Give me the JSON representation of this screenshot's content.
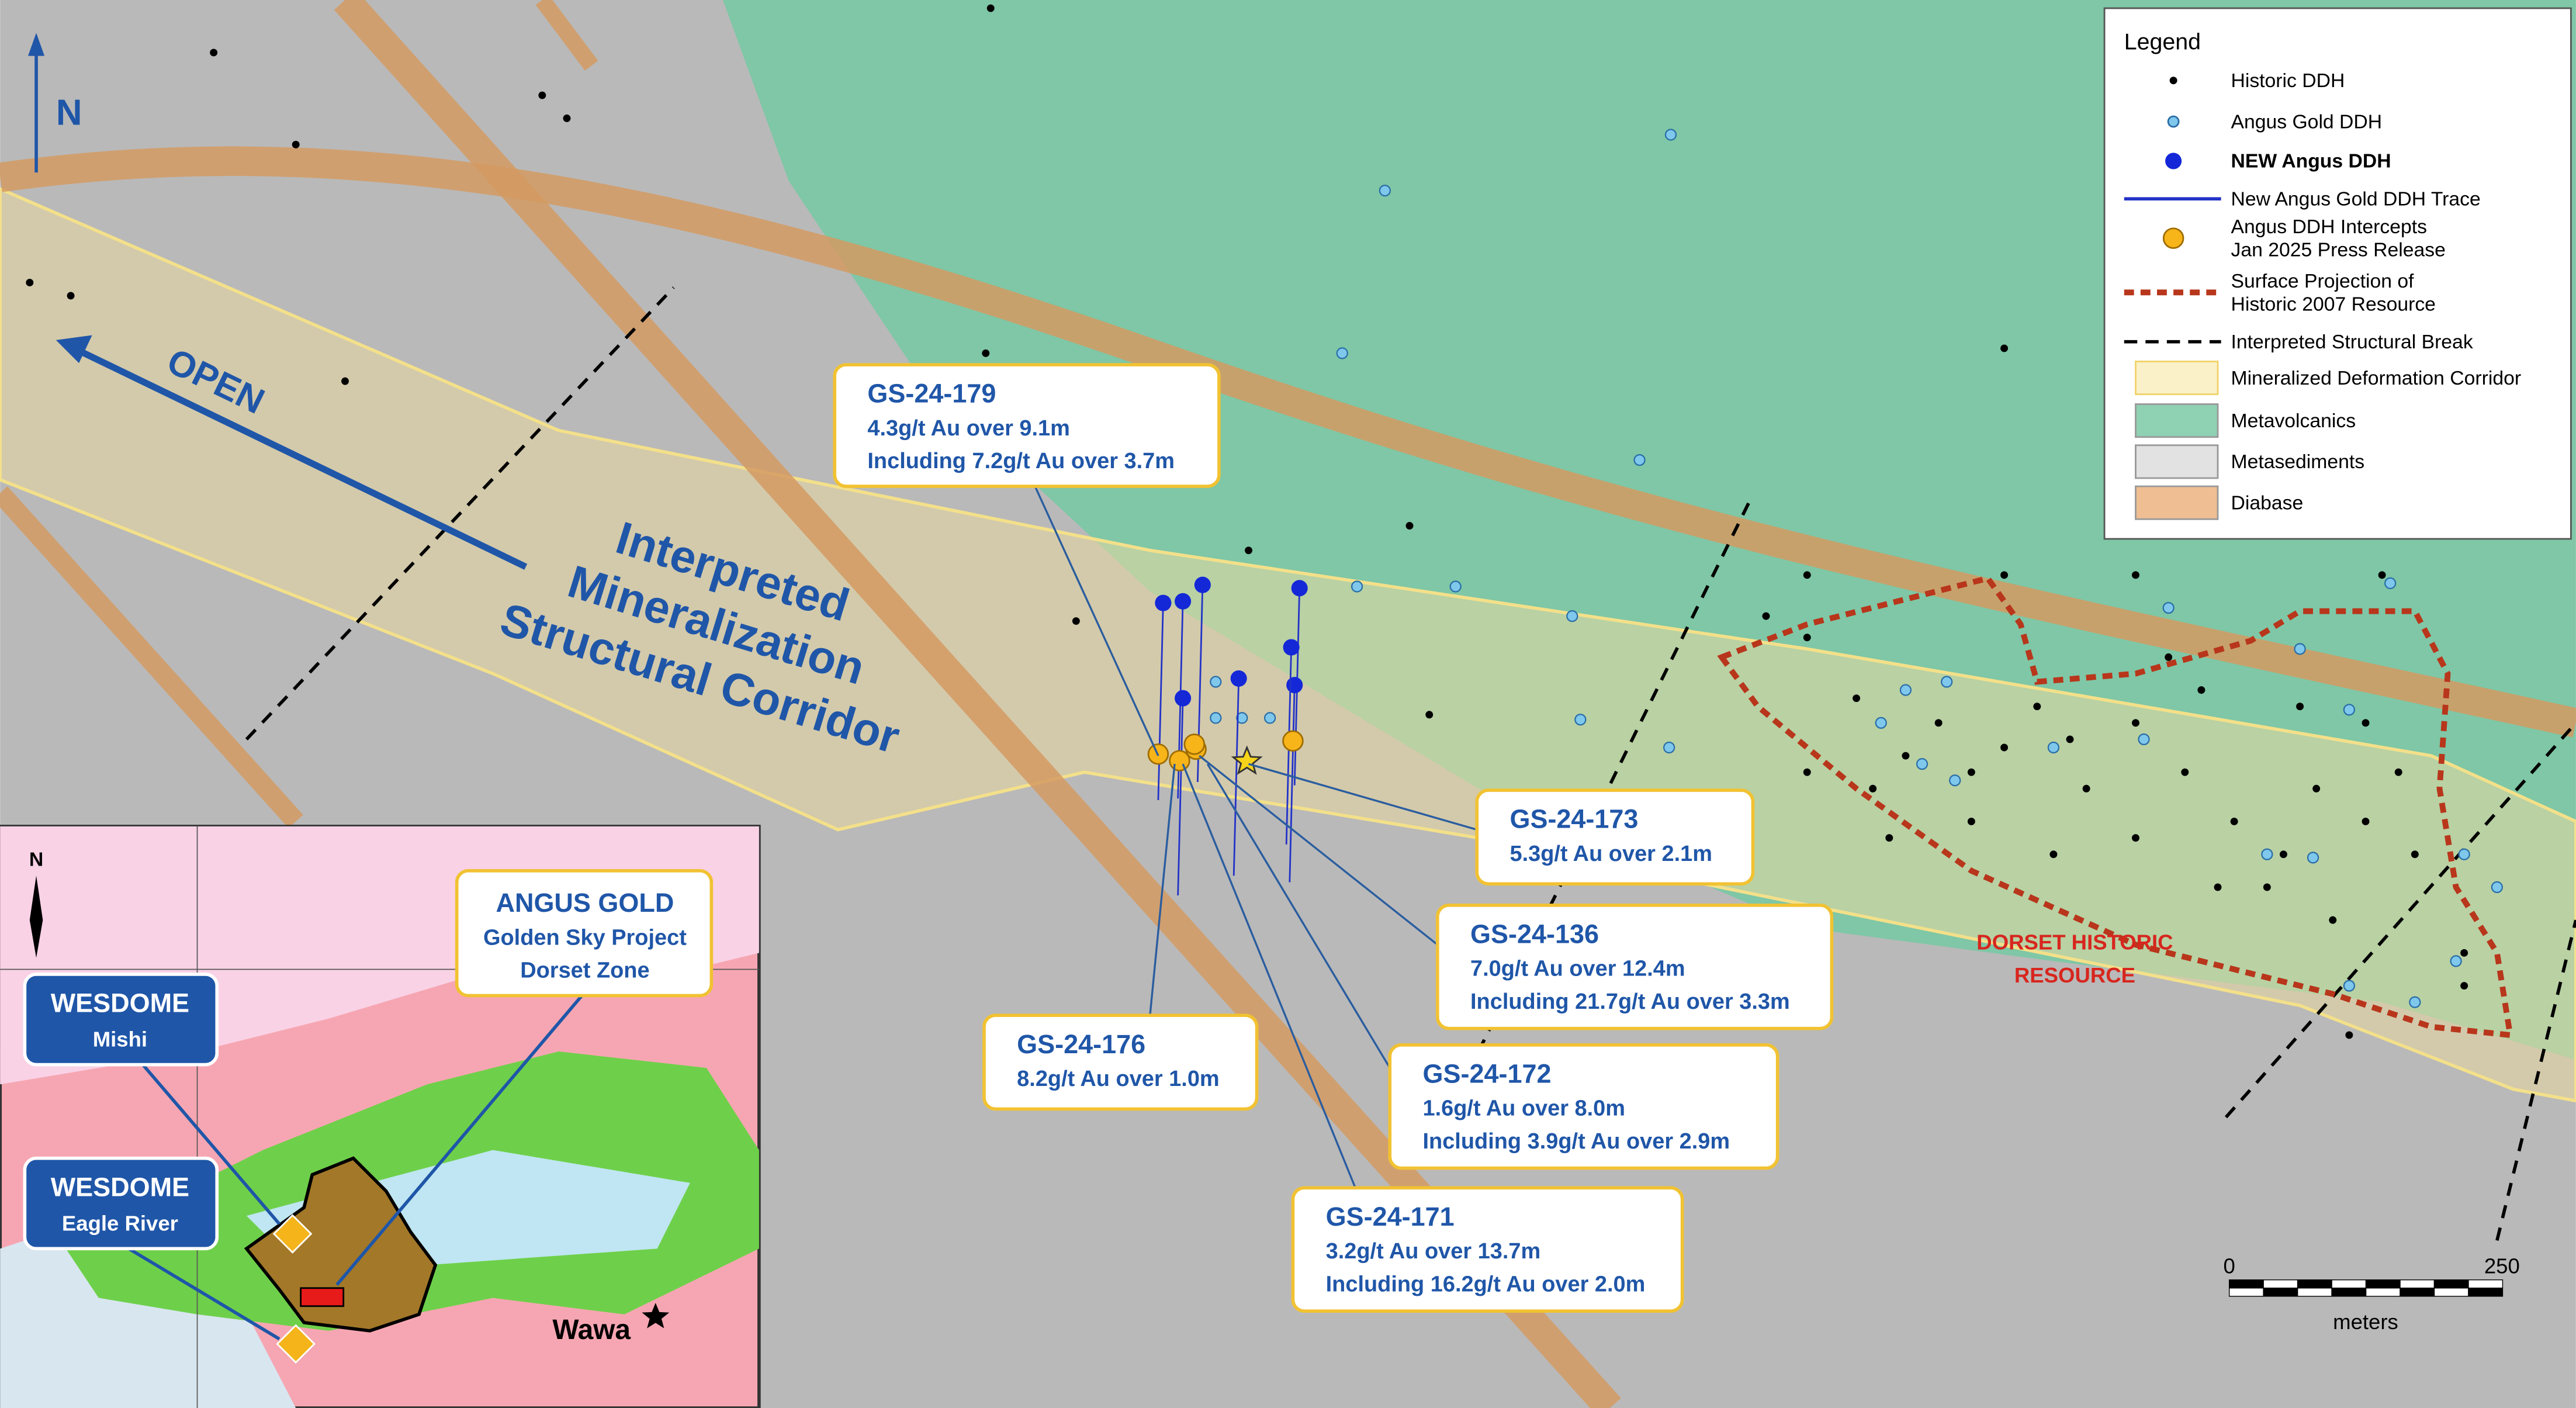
{
  "north": "N",
  "map_labels": {
    "open": "OPEN",
    "corridor": [
      "Interpreted",
      "Mineralization",
      "Structural Corridor"
    ],
    "resource": [
      "DORSET HISTORIC",
      "RESOURCE"
    ]
  },
  "legend": {
    "title": "Legend",
    "items": [
      [
        "Historic DDH"
      ],
      [
        "Angus Gold DDH"
      ],
      [
        "NEW Angus DDH"
      ],
      [
        "New Angus Gold DDH Trace"
      ],
      [
        "Angus DDH Intercepts",
        "Jan 2025 Press Release"
      ],
      [
        "Surface Projection of",
        "Historic 2007 Resource"
      ],
      [
        "Interpreted Structural Break"
      ],
      [
        "Mineralized Deformation Corridor"
      ],
      [
        "Metavolcanics"
      ],
      [
        "Metasediments"
      ],
      [
        "Diabase"
      ]
    ]
  },
  "callouts": [
    {
      "hole": "GS-24-179",
      "lines": [
        "4.3g/t Au over 9.1m",
        "Including 7.2g/t Au over 3.7m"
      ]
    },
    {
      "hole": "GS-24-173",
      "lines": [
        "5.3g/t Au over 2.1m"
      ]
    },
    {
      "hole": "GS-24-136",
      "lines": [
        "7.0g/t Au over 12.4m",
        "Including 21.7g/t Au over 3.3m"
      ]
    },
    {
      "hole": "GS-24-176",
      "lines": [
        "8.2g/t Au over 1.0m"
      ]
    },
    {
      "hole": "GS-24-172",
      "lines": [
        "1.6g/t Au over 8.0m",
        "Including 3.9g/t Au over 2.9m"
      ]
    },
    {
      "hole": "GS-24-171",
      "lines": [
        "3.2g/t Au over 13.7m",
        "Including 16.2g/t Au over 2.0m"
      ]
    }
  ],
  "scale": {
    "start": "0",
    "end": "250",
    "unit": "meters"
  },
  "inset": {
    "north": "N",
    "angus": [
      "ANGUS GOLD",
      "Golden Sky Project",
      "Dorset Zone"
    ],
    "mishi": [
      "WESDOME",
      "Mishi"
    ],
    "eagle": [
      "WESDOME",
      "Eagle River"
    ],
    "town": "Wawa"
  }
}
